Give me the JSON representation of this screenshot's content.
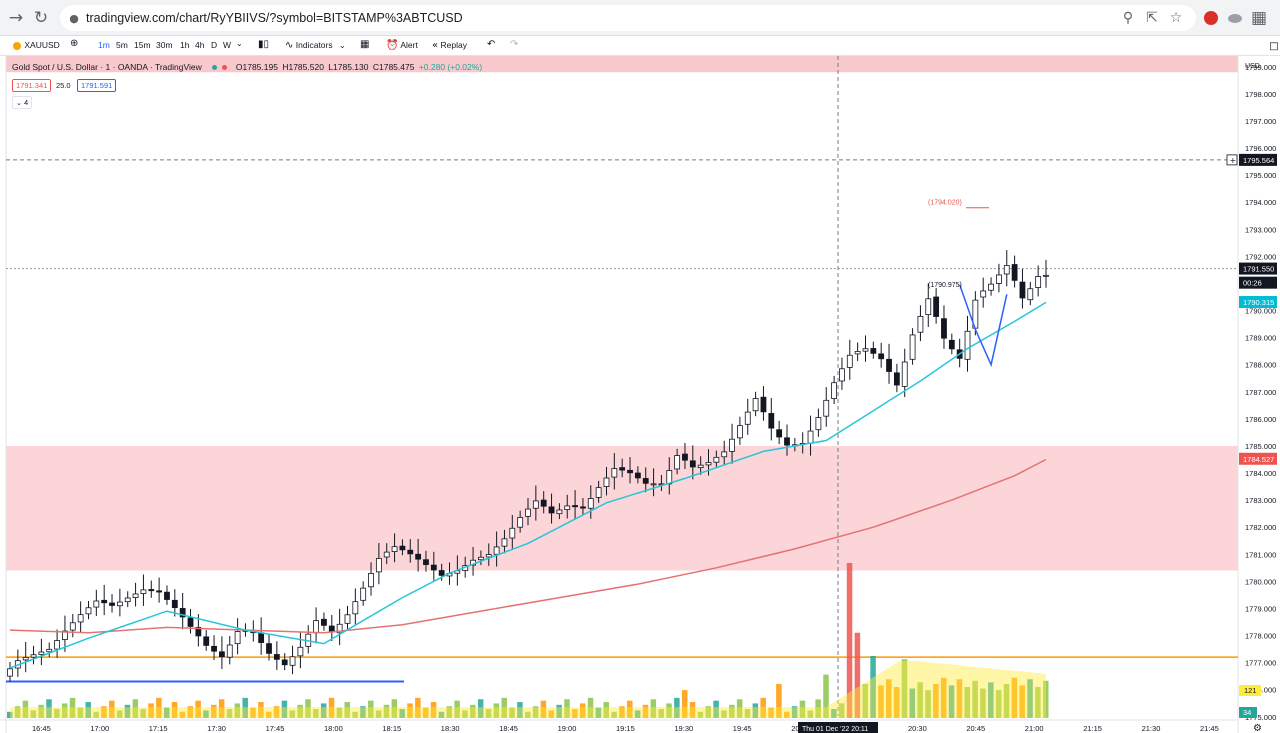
{
  "browser": {
    "url": "tradingview.com/chart/RyYBIIVS/?symbol=BITSTAMP%3ABTCUSD",
    "icons": [
      "back-icon",
      "reload-icon",
      "lock-icon",
      "zoom-icon",
      "share-icon",
      "star-icon",
      "extension-icon",
      "extension-icon",
      "sheet-icon"
    ]
  },
  "toolbar": {
    "symbol": "XAUUSD",
    "intervals": [
      "1m",
      "5m",
      "15m",
      "30m",
      "1h",
      "4h",
      "D",
      "W"
    ],
    "indicators_label": "Indicators",
    "alert_label": "Alert",
    "replay_label": "Replay"
  },
  "legend": {
    "title": "Gold Spot / U.S. Dollar · 1 · OANDA · TradingView",
    "ohlc": {
      "o": "O1785.195",
      "h": "H1785.520",
      "l": "L1785.130",
      "c": "C1785.475",
      "chg": "+0.280 (+0.02%)"
    },
    "bid": "1791.341",
    "spread": "25.0",
    "ask": "1791.591",
    "collapse": "4",
    "colors": {
      "up": "#26a69a",
      "down": "#ef5350"
    }
  },
  "chart_data": {
    "type": "candlestick",
    "currency": "USD",
    "y_ticks": [
      "1799.000",
      "1798.000",
      "1797.000",
      "1796.000",
      "1795.000",
      "1794.000",
      "1793.000",
      "1792.000",
      "1791.000",
      "1790.000",
      "1789.000",
      "1788.000",
      "1787.000",
      "1786.000",
      "1785.000",
      "1784.000",
      "1783.000",
      "1782.000",
      "1781.000",
      "1780.000",
      "1779.000",
      "1778.000",
      "1777.000",
      "1776.000",
      "1775.000"
    ],
    "x_ticks": [
      "16:45",
      "17:00",
      "17:15",
      "17:30",
      "17:45",
      "18:00",
      "18:15",
      "18:30",
      "18:45",
      "19:00",
      "19:15",
      "19:30",
      "19:45",
      "20:00",
      "20:15",
      "20:30",
      "20:45",
      "21:00",
      "21:15",
      "21:30",
      "21:45"
    ],
    "ylim": [
      1774.4,
      1799.4
    ],
    "crosshair_time": "Thu 01 Dec '22  20:11",
    "crosshair_price": "1795.564",
    "last_price": "1791.550",
    "countdown": "00:26",
    "ma_fast_value": "1790.315",
    "ma_slow_value": "1784.527",
    "volume_label_a": "121",
    "volume_label_b": "34",
    "annotations": [
      {
        "text": "(1794.020)",
        "price": 1794.02
      },
      {
        "text": "(1790.975)",
        "price": 1790.975
      }
    ],
    "zones": [
      {
        "low": 1798.8,
        "high": 1799.8,
        "color": "#f8c9cc"
      },
      {
        "low": 1780.4,
        "high": 1785.0,
        "color": "#fbd5d7"
      }
    ],
    "horizontal_lines": [
      {
        "price": 1777.2,
        "color": "#ff9800"
      },
      {
        "price": 1776.3,
        "color": "#2962ff"
      }
    ],
    "price_path": [
      [
        0,
        1776.5
      ],
      [
        2,
        1777.1
      ],
      [
        4,
        1777.3
      ],
      [
        6,
        1777.5
      ],
      [
        8,
        1778.2
      ],
      [
        10,
        1778.8
      ],
      [
        12,
        1779.3
      ],
      [
        14,
        1779.1
      ],
      [
        16,
        1779.4
      ],
      [
        18,
        1779.7
      ],
      [
        20,
        1779.6
      ],
      [
        22,
        1779.0
      ],
      [
        24,
        1778.3
      ],
      [
        26,
        1777.6
      ],
      [
        28,
        1777.2
      ],
      [
        30,
        1778.2
      ],
      [
        32,
        1778.1
      ],
      [
        34,
        1777.3
      ],
      [
        36,
        1776.9
      ],
      [
        38,
        1777.6
      ],
      [
        40,
        1778.6
      ],
      [
        42,
        1778.1
      ],
      [
        44,
        1778.8
      ],
      [
        46,
        1779.8
      ],
      [
        48,
        1780.9
      ],
      [
        50,
        1781.3
      ],
      [
        52,
        1781.0
      ],
      [
        54,
        1780.6
      ],
      [
        56,
        1780.2
      ],
      [
        58,
        1780.4
      ],
      [
        60,
        1780.8
      ],
      [
        62,
        1781.0
      ],
      [
        64,
        1781.6
      ],
      [
        66,
        1782.4
      ],
      [
        68,
        1783.0
      ],
      [
        70,
        1782.5
      ],
      [
        72,
        1782.8
      ],
      [
        74,
        1782.7
      ],
      [
        76,
        1783.5
      ],
      [
        78,
        1784.2
      ],
      [
        80,
        1784.0
      ],
      [
        82,
        1783.6
      ],
      [
        84,
        1783.6
      ],
      [
        86,
        1784.7
      ],
      [
        88,
        1784.2
      ],
      [
        90,
        1784.4
      ],
      [
        92,
        1784.8
      ],
      [
        94,
        1785.8
      ],
      [
        96,
        1786.8
      ],
      [
        98,
        1785.6
      ],
      [
        100,
        1785.0
      ],
      [
        102,
        1785.1
      ],
      [
        104,
        1786.1
      ],
      [
        106,
        1787.4
      ],
      [
        108,
        1788.4
      ],
      [
        110,
        1788.6
      ],
      [
        112,
        1788.2
      ],
      [
        114,
        1787.2
      ],
      [
        116,
        1789.2
      ],
      [
        118,
        1790.5
      ],
      [
        120,
        1788.9
      ],
      [
        122,
        1788.2
      ],
      [
        124,
        1790.5
      ],
      [
        126,
        1791.0
      ],
      [
        128,
        1791.7
      ],
      [
        130,
        1790.4
      ],
      [
        132,
        1791.3
      ]
    ],
    "ma_fast": [
      [
        0,
        1776.8
      ],
      [
        10,
        1777.9
      ],
      [
        20,
        1778.9
      ],
      [
        30,
        1778.2
      ],
      [
        40,
        1777.7
      ],
      [
        50,
        1779.4
      ],
      [
        56,
        1780.3
      ],
      [
        66,
        1781.4
      ],
      [
        76,
        1782.9
      ],
      [
        86,
        1783.8
      ],
      [
        96,
        1784.8
      ],
      [
        104,
        1785.2
      ],
      [
        110,
        1786.3
      ],
      [
        116,
        1787.4
      ],
      [
        122,
        1788.6
      ],
      [
        128,
        1789.6
      ],
      [
        132,
        1790.3
      ]
    ],
    "ma_slow": [
      [
        0,
        1778.2
      ],
      [
        10,
        1778.1
      ],
      [
        20,
        1778.3
      ],
      [
        30,
        1778.2
      ],
      [
        40,
        1778.1
      ],
      [
        50,
        1778.4
      ],
      [
        60,
        1778.9
      ],
      [
        70,
        1779.4
      ],
      [
        80,
        1779.9
      ],
      [
        90,
        1780.5
      ],
      [
        100,
        1781.2
      ],
      [
        110,
        1782.0
      ],
      [
        120,
        1783.0
      ],
      [
        128,
        1783.9
      ],
      [
        132,
        1784.5
      ]
    ],
    "volume_spikes": [
      {
        "i": 103,
        "v": 12
      },
      {
        "i": 104,
        "v": 28
      },
      {
        "i": 107,
        "v": 100
      },
      {
        "i": 108,
        "v": 55
      },
      {
        "i": 110,
        "v": 40
      },
      {
        "i": 114,
        "v": 38
      },
      {
        "i": 86,
        "v": 18
      },
      {
        "i": 98,
        "v": 22
      }
    ]
  }
}
